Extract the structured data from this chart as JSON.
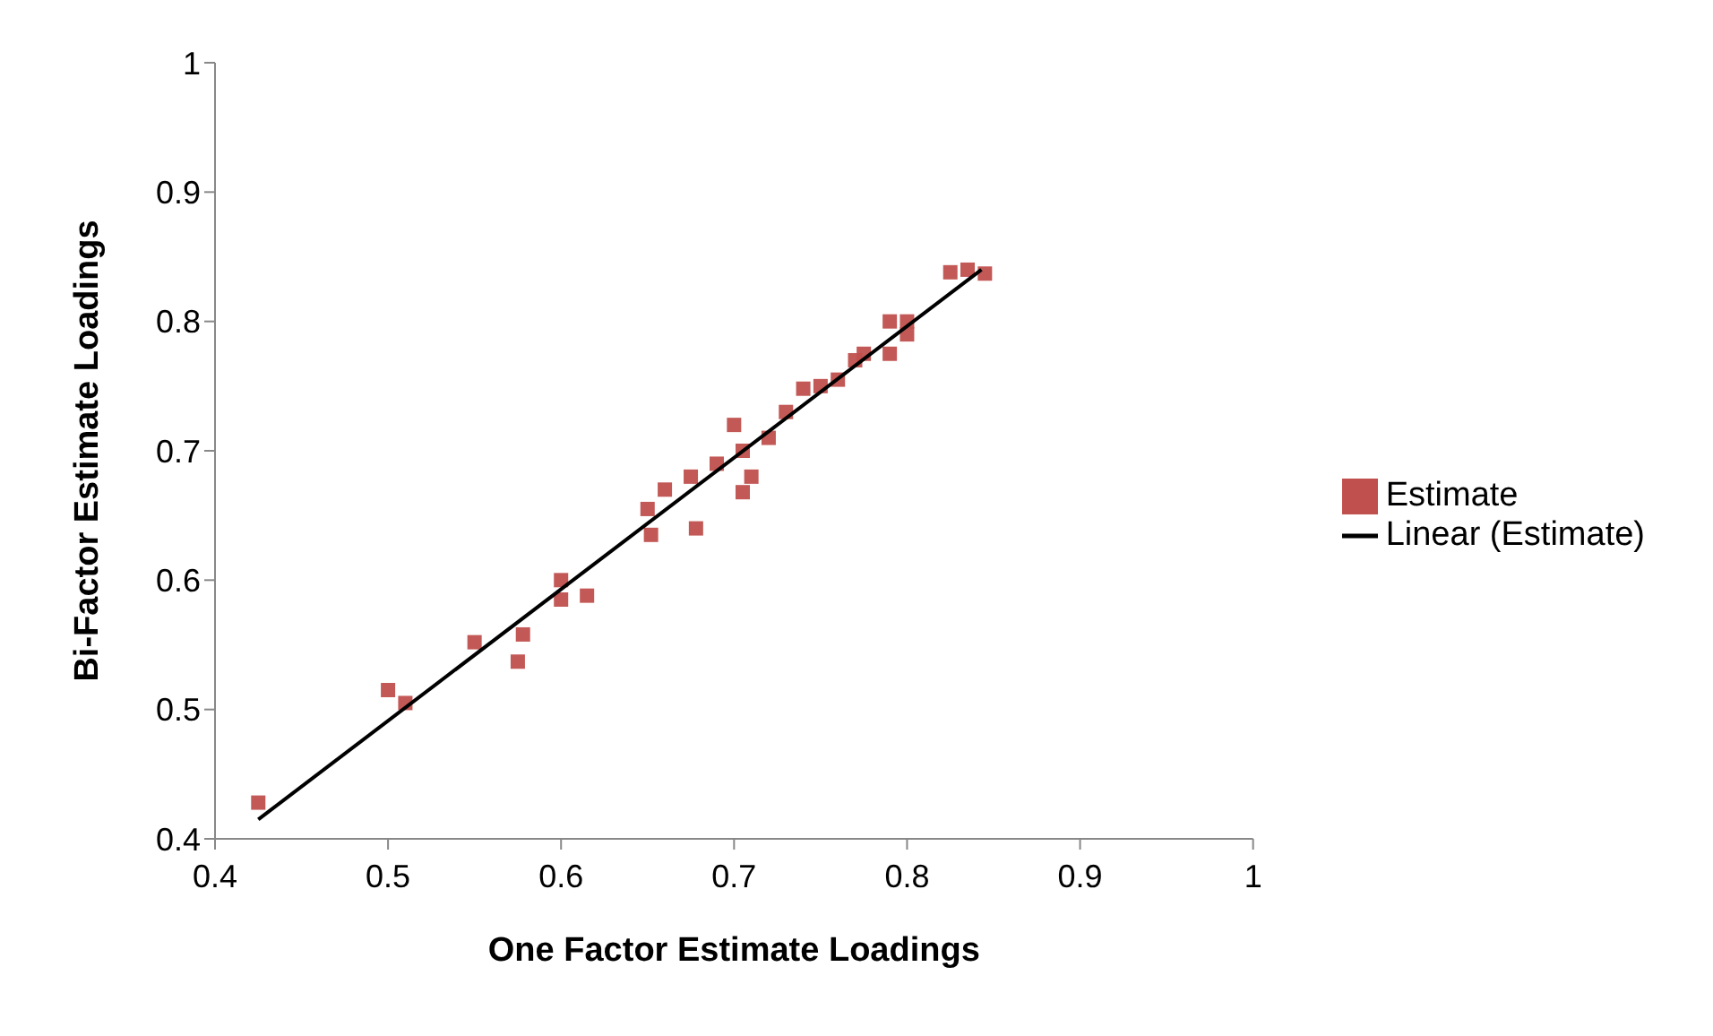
{
  "chart_data": {
    "type": "scatter",
    "xlabel": "One Factor Estimate Loadings",
    "ylabel": "Bi-Factor Estimate Loadings",
    "xlim": [
      0.4,
      1
    ],
    "xticks": [
      0.4,
      0.5,
      0.6,
      0.7,
      0.8,
      0.9,
      1
    ],
    "ylim": [
      0.4,
      1
    ],
    "yticks": [
      0.4,
      0.5,
      0.6,
      0.7,
      0.8,
      0.9,
      1
    ],
    "grid": false,
    "legend": "right",
    "marker": "square",
    "series": [
      {
        "name": "Estimate",
        "color": "#c0504d",
        "x": [
          0.425,
          0.5,
          0.51,
          0.55,
          0.575,
          0.578,
          0.6,
          0.6,
          0.615,
          0.65,
          0.652,
          0.66,
          0.675,
          0.678,
          0.69,
          0.7,
          0.705,
          0.705,
          0.71,
          0.72,
          0.73,
          0.74,
          0.75,
          0.76,
          0.77,
          0.775,
          0.79,
          0.79,
          0.8,
          0.8,
          0.825,
          0.835,
          0.845
        ],
        "values": [
          0.428,
          0.515,
          0.505,
          0.552,
          0.537,
          0.558,
          0.6,
          0.585,
          0.588,
          0.655,
          0.635,
          0.67,
          0.68,
          0.64,
          0.69,
          0.72,
          0.668,
          0.7,
          0.68,
          0.71,
          0.73,
          0.748,
          0.75,
          0.755,
          0.77,
          0.775,
          0.8,
          0.775,
          0.79,
          0.8,
          0.838,
          0.84,
          0.837
        ]
      },
      {
        "name": "Linear (Estimate)",
        "type": "line",
        "color": "#000000",
        "marker": "none",
        "line_style": "solid",
        "x": [
          0.425,
          0.843
        ],
        "values": [
          0.415,
          0.84
        ]
      }
    ]
  }
}
